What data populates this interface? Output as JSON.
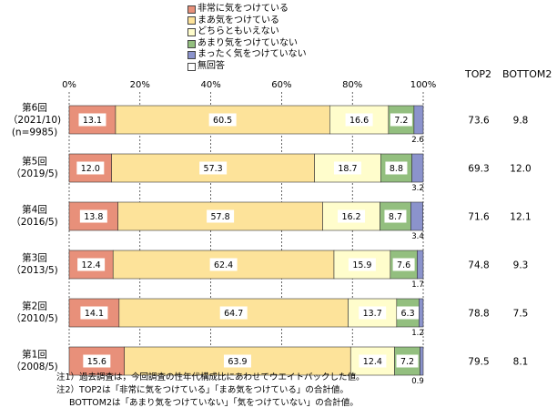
{
  "chart_data": {
    "type": "bar",
    "orientation": "horizontal",
    "stacked": true,
    "xlim": [
      0,
      100
    ],
    "x_ticks": [
      "0%",
      "20%",
      "40%",
      "60%",
      "80%",
      "100%"
    ],
    "grid": true,
    "legend_position": "top",
    "categories": [
      {
        "label": "第6回",
        "date": "（2021/10)",
        "extra": "(n=9985)"
      },
      {
        "label": "第5回",
        "date": "（2019/5)"
      },
      {
        "label": "第4回",
        "date": "（2016/5)"
      },
      {
        "label": "第3回",
        "date": "（2013/5)"
      },
      {
        "label": "第2回",
        "date": "（2010/5)"
      },
      {
        "label": "第1回",
        "date": "（2008/5)"
      }
    ],
    "series": [
      {
        "name": "非常に気をつけている",
        "color": "#e8907a",
        "values": [
          13.1,
          12.0,
          13.8,
          12.4,
          14.1,
          15.6
        ],
        "labels": [
          "13.1",
          "12.0",
          "13.8",
          "12.4",
          "14.1",
          "15.6"
        ]
      },
      {
        "name": "まあ気をつけている",
        "color": "#fde39a",
        "values": [
          60.5,
          57.3,
          57.8,
          62.4,
          64.7,
          63.9
        ],
        "labels": [
          "60.5",
          "57.3",
          "57.8",
          "62.4",
          "64.7",
          "63.9"
        ]
      },
      {
        "name": "どちらともいえない",
        "color": "#fffdcc",
        "values": [
          16.6,
          18.7,
          16.2,
          15.9,
          13.7,
          12.4
        ],
        "labels": [
          "16.6",
          "18.7",
          "16.2",
          "15.9",
          "13.7",
          "12.4"
        ]
      },
      {
        "name": "あまり気をつけていない",
        "color": "#93bf7f",
        "values": [
          7.2,
          8.8,
          8.7,
          7.6,
          6.3,
          7.2
        ],
        "labels": [
          "7.2",
          "8.8",
          "8.7",
          "7.6",
          "6.3",
          "7.2"
        ]
      },
      {
        "name": "まったく気をつけていない",
        "color": "#8b93cc",
        "values": [
          2.6,
          3.2,
          3.4,
          1.7,
          1.2,
          0.9
        ],
        "labels": [
          "2.6",
          "3.2",
          "3.4",
          "1.7",
          "1.2",
          "0.9"
        ]
      },
      {
        "name": "無回答",
        "color": "#ffffff",
        "values": [
          0,
          0,
          0,
          0,
          0,
          0
        ]
      }
    ],
    "summary_columns": [
      {
        "header": "TOP2",
        "values": [
          "73.6",
          "69.3",
          "71.6",
          "74.8",
          "78.8",
          "79.5"
        ]
      },
      {
        "header": "BOTTOM2",
        "values": [
          "9.8",
          "12.0",
          "12.1",
          "9.3",
          "7.5",
          "8.1"
        ]
      }
    ]
  },
  "notes": [
    "注1）過去調査は，今回調査の性年代構成比にあわせてウエイトバックした値。",
    "注2）TOP2は「非常に気をつけている」「まあ気をつけている」の合計値。",
    "BOTTOM2は「あまり気をつけていない」「気をつけていない」の合計値。"
  ]
}
